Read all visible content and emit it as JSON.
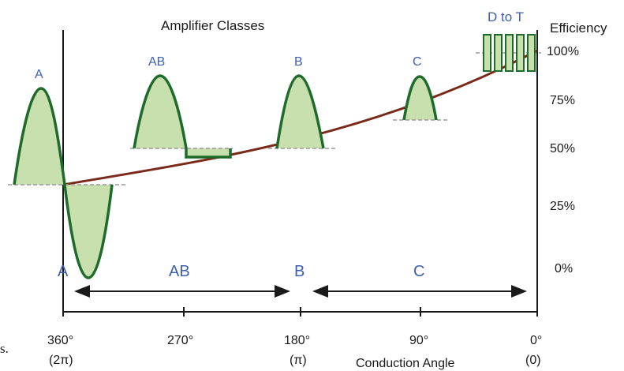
{
  "title": "Amplifier Classes",
  "efficiency_axis": {
    "label": "Efficiency",
    "ticks": [
      "100%",
      "75%",
      "50%",
      "25%",
      "0%"
    ]
  },
  "classes": {
    "a": "A",
    "ab": "AB",
    "b": "B",
    "c": "C",
    "d_to_t": "D to T"
  },
  "conduction_axis": {
    "label": "Conduction Angle",
    "ticks": [
      {
        "deg": "360°",
        "rad": "(2π)"
      },
      {
        "deg": "270°",
        "rad": ""
      },
      {
        "deg": "180°",
        "rad": "(π)"
      },
      {
        "deg": "90°",
        "rad": ""
      },
      {
        "deg": "0°",
        "rad": "(0)"
      }
    ]
  },
  "edge_fragment": "s.",
  "colors": {
    "wave_stroke": "#1e6b2c",
    "wave_fill": "#c8dfae",
    "efficiency_curve": "#7a2a1a",
    "class_label": "#3d5fb0",
    "bias_line": "#9a9a9a"
  }
}
